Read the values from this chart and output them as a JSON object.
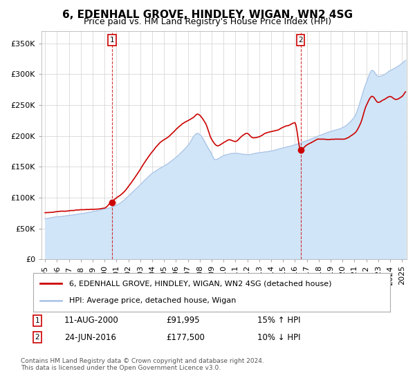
{
  "title": "6, EDENHALL GROVE, HINDLEY, WIGAN, WN2 4SG",
  "subtitle": "Price paid vs. HM Land Registry's House Price Index (HPI)",
  "ylim": [
    0,
    370000
  ],
  "yticks": [
    0,
    50000,
    100000,
    150000,
    200000,
    250000,
    300000,
    350000
  ],
  "ytick_labels": [
    "£0",
    "£50K",
    "£100K",
    "£150K",
    "£200K",
    "£250K",
    "£300K",
    "£350K"
  ],
  "hpi_color": "#aec6e8",
  "hpi_fill_color": "#d0e5f7",
  "price_color": "#cc0000",
  "background_color": "#ffffff",
  "grid_color": "#d0d0d0",
  "sale1_x": 2000.614,
  "sale1_y": 91995,
  "sale1_label": "1",
  "sale2_x": 2016.479,
  "sale2_y": 177500,
  "sale2_label": "2",
  "legend_label1": "6, EDENHALL GROVE, HINDLEY, WIGAN, WN2 4SG (detached house)",
  "legend_label2": "HPI: Average price, detached house, Wigan",
  "annotation1_date": "11-AUG-2000",
  "annotation1_price": "£91,995",
  "annotation1_hpi": "15% ↑ HPI",
  "annotation2_date": "24-JUN-2016",
  "annotation2_price": "£177,500",
  "annotation2_hpi": "10% ↓ HPI",
  "footer": "Contains HM Land Registry data © Crown copyright and database right 2024.\nThis data is licensed under the Open Government Licence v3.0.",
  "title_fontsize": 11,
  "subtitle_fontsize": 9,
  "tick_fontsize": 8,
  "xlim_start": 1994.7,
  "xlim_end": 2025.4
}
